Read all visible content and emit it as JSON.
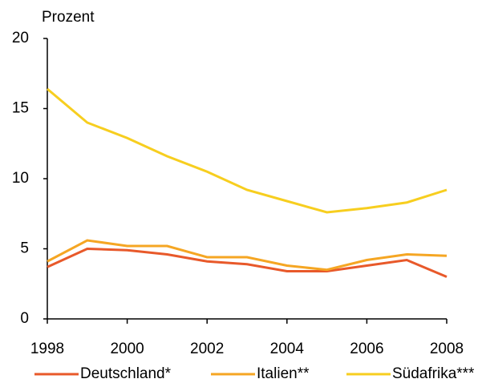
{
  "chart_data": {
    "type": "line",
    "y_label": "Prozent",
    "x": [
      1998,
      1999,
      2000,
      2001,
      2002,
      2003,
      2004,
      2005,
      2006,
      2007,
      2008
    ],
    "series": [
      {
        "name": "Deutschland*",
        "color": "#e8592a",
        "values": [
          3.7,
          5.0,
          4.9,
          4.6,
          4.1,
          3.9,
          3.4,
          3.4,
          3.8,
          4.2,
          3.0
        ]
      },
      {
        "name": "Italien**",
        "color": "#f5a623",
        "values": [
          4.1,
          5.6,
          5.2,
          5.2,
          4.4,
          4.4,
          3.8,
          3.5,
          4.2,
          4.6,
          4.5
        ]
      },
      {
        "name": "Südafrika***",
        "color": "#f7ce1f",
        "values": [
          16.4,
          14.0,
          12.9,
          11.6,
          10.5,
          9.2,
          8.4,
          7.6,
          7.9,
          8.3,
          9.2
        ]
      }
    ],
    "xlim": [
      1998,
      2008
    ],
    "xticks": [
      1998,
      2000,
      2002,
      2004,
      2006,
      2008
    ],
    "ylim": [
      0,
      20
    ],
    "yticks": [
      0,
      5,
      10,
      15,
      20
    ],
    "grid": false,
    "legend": "bottom"
  }
}
